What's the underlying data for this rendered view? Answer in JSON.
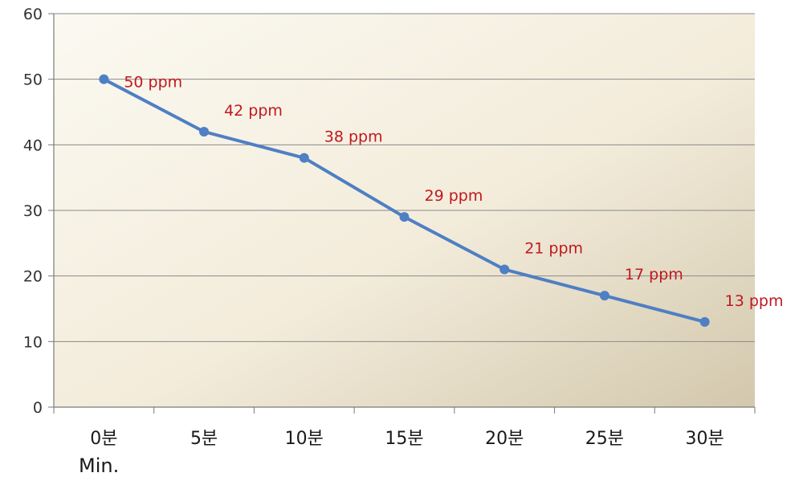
{
  "chart_data": {
    "type": "line",
    "categories": [
      "0분",
      "5분",
      "10분",
      "15분",
      "20분",
      "25분",
      "30분"
    ],
    "series": [
      {
        "values": [
          50,
          42,
          38,
          29,
          21,
          17,
          13
        ],
        "labels": [
          "50 ppm",
          "42 ppm",
          "38 ppm",
          "29 ppm",
          "21 ppm",
          "17 ppm",
          "13 ppm"
        ],
        "color": "#4f7fc4"
      }
    ],
    "y_ticks": [
      "0",
      "10",
      "20",
      "30",
      "40",
      "50",
      "60"
    ],
    "ylim": [
      0,
      60
    ],
    "xlabel": "Min.",
    "ylabel": "",
    "title": "",
    "grid": true,
    "legend": "none",
    "colors": {
      "label": "#c0191f",
      "grid": "#8a8a8a",
      "plot_bg_light": "#fbf8ee",
      "plot_bg_dark": "#d6ccb2"
    }
  }
}
